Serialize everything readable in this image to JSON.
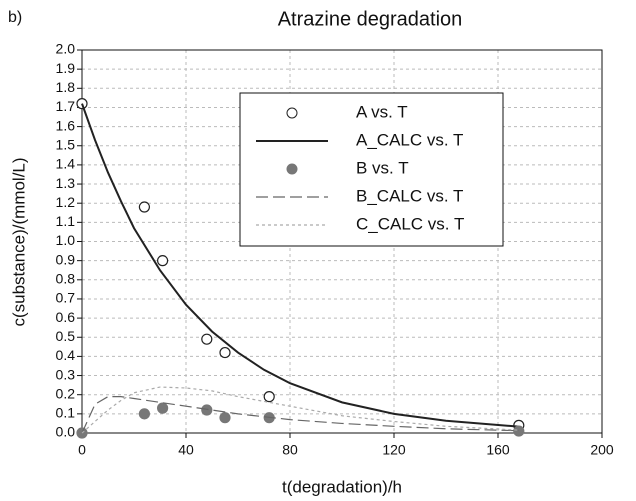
{
  "chart_data": {
    "type": "scatter-line",
    "panel_label": "b)",
    "title": "Atrazine degradation",
    "x_label": "t(degradation)/h",
    "y_label": "c(substance)/(mmol/L)",
    "xlim": [
      0,
      200
    ],
    "xticks": [
      0,
      40,
      80,
      120,
      160,
      200
    ],
    "ylim": [
      0,
      2
    ],
    "yticks": [
      {
        "value": 0,
        "label": "0.0"
      },
      0.1,
      0.2,
      0.3,
      0.4,
      0.5,
      0.6,
      0.7,
      0.8,
      0.9,
      {
        "value": 1,
        "label": "1.0"
      },
      1.1,
      1.2,
      1.3,
      1.4,
      1.5,
      1.6,
      1.7,
      1.8,
      1.9,
      {
        "value": 2,
        "label": "2.0"
      }
    ],
    "grid": true,
    "series": [
      {
        "name": "A vs. T",
        "color": "#222222",
        "style": "open-circle",
        "x": [
          0,
          24,
          31,
          48,
          55,
          72,
          168
        ],
        "values": [
          1.72,
          1.18,
          0.9,
          0.49,
          0.42,
          0.19,
          0.04
        ]
      },
      {
        "name": "A_CALC vs. T",
        "color": "#222222",
        "style": "solid",
        "x": [
          0,
          5,
          10,
          15,
          20,
          30,
          40,
          50,
          60,
          70,
          80,
          100,
          120,
          140,
          168
        ],
        "values": [
          1.72,
          1.53,
          1.36,
          1.21,
          1.07,
          0.85,
          0.67,
          0.53,
          0.42,
          0.33,
          0.26,
          0.16,
          0.1,
          0.064,
          0.033
        ]
      },
      {
        "name": "B vs. T",
        "color": "#777777",
        "style": "filled-circle",
        "x": [
          0,
          24,
          31,
          48,
          55,
          72,
          168
        ],
        "values": [
          0,
          0.1,
          0.13,
          0.12,
          0.08,
          0.08,
          0.01
        ]
      },
      {
        "name": "B_CALC vs. T",
        "color": "#666666",
        "style": "dash",
        "x": [
          0,
          5,
          10,
          15,
          20,
          30,
          40,
          50,
          60,
          70,
          80,
          100,
          120,
          140,
          168
        ],
        "values": [
          0,
          0.15,
          0.19,
          0.19,
          0.18,
          0.16,
          0.14,
          0.12,
          0.1,
          0.085,
          0.07,
          0.05,
          0.035,
          0.022,
          0.012
        ]
      },
      {
        "name": "C_CALC vs. T",
        "color": "#aaaaaa",
        "style": "dot",
        "x": [
          0,
          5,
          10,
          15,
          20,
          30,
          40,
          50,
          60,
          70,
          80,
          100,
          120,
          140,
          168
        ],
        "values": [
          0,
          0.06,
          0.12,
          0.17,
          0.21,
          0.24,
          0.235,
          0.22,
          0.19,
          0.165,
          0.14,
          0.09,
          0.06,
          0.035,
          0.015
        ]
      }
    ]
  }
}
